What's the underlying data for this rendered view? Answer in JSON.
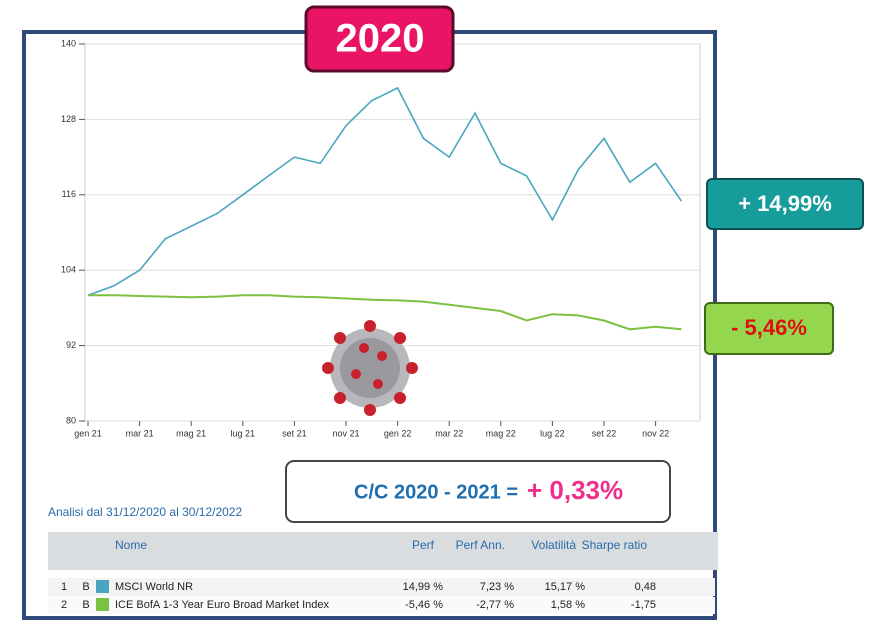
{
  "chart_data": {
    "type": "line",
    "categories": [
      "gen 21",
      null,
      "mar 21",
      null,
      "mag 21",
      null,
      "lug 21",
      null,
      "set 21",
      null,
      "nov 21",
      null,
      "gen 22",
      null,
      "mar 22",
      null,
      "mag 22",
      null,
      "lug 22",
      null,
      "set 22",
      null,
      "nov 22",
      null
    ],
    "series": [
      {
        "name": "MSCI World NR",
        "color": "#4aa6bf",
        "values": [
          100,
          101.5,
          104,
          109,
          111,
          113,
          116,
          119,
          122,
          121,
          127,
          131,
          133,
          125,
          122,
          129,
          121,
          119,
          112,
          120,
          125,
          118,
          121,
          115
        ]
      },
      {
        "name": "ICE BofA 1-3 Year Euro Broad Market Index",
        "color": "#7cc242",
        "values": [
          100,
          100,
          99.9,
          99.8,
          99.7,
          99.8,
          100,
          100,
          99.8,
          99.7,
          99.5,
          99.3,
          99.2,
          99,
          98.5,
          98,
          97.5,
          96,
          97,
          96.8,
          96,
          94.6,
          95,
          94.6
        ]
      }
    ],
    "ylim": [
      80,
      140
    ],
    "yticks": [
      80,
      92,
      104,
      116,
      128,
      140
    ],
    "grid": true
  },
  "badges": {
    "year": "2020",
    "series_0": "+ 14,99%",
    "series_1": "- 5,46%"
  },
  "summary": {
    "label": "C/C 2020 - 2021 =",
    "value": "+ 0,33%"
  },
  "analysis": "Analisi dal 31/12/2020 al 30/12/2022",
  "table": {
    "header": [
      "Nome",
      "Perf",
      "Perf Ann.",
      "Volatilità",
      "Sharpe ratio"
    ],
    "rows": [
      [
        "1",
        "B",
        "MSCI World NR",
        "14,99 %",
        "7,23 %",
        "15,17 %",
        "0,48"
      ],
      [
        "2",
        "B",
        "ICE BofA 1-3 Year Euro Broad Market Index",
        "-5,46 %",
        "-2,77 %",
        "1,58 %",
        "-1,75"
      ]
    ]
  }
}
